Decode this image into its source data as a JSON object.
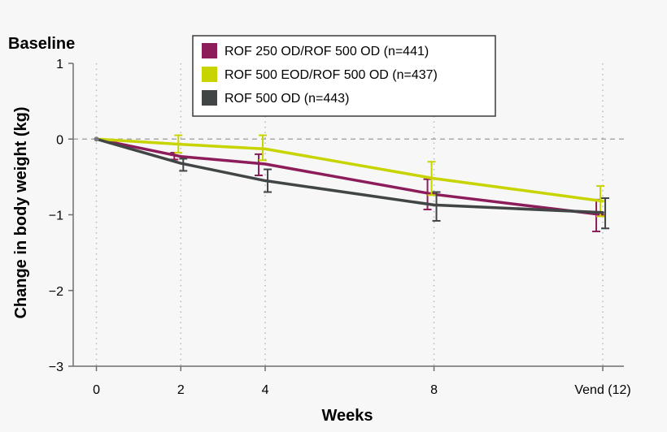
{
  "chart_data": {
    "type": "line",
    "title": "Baseline",
    "xlabel": "Weeks",
    "ylabel": "Change in body weight (kg)",
    "x_ticks": [
      {
        "value": 0,
        "label": "0"
      },
      {
        "value": 2,
        "label": "2"
      },
      {
        "value": 4,
        "label": "4"
      },
      {
        "value": 8,
        "label": "8"
      },
      {
        "value": 12,
        "label": "Vend (12)"
      }
    ],
    "y_ticks": [
      {
        "value": 1,
        "label": "1"
      },
      {
        "value": 0,
        "label": "0"
      },
      {
        "value": -1,
        "label": "−1"
      },
      {
        "value": -2,
        "label": "−2"
      },
      {
        "value": -3,
        "label": "−3"
      }
    ],
    "xlim": [
      -0.55,
      12.5
    ],
    "ylim": [
      -3,
      1
    ],
    "reference_line_y": 0,
    "legend_position": "top-center",
    "series": [
      {
        "name": "ROF 250 OD/ROF 500 OD (n=441)",
        "color": "#8c1d5a",
        "x": [
          0,
          2,
          4,
          8,
          12
        ],
        "y": [
          0,
          -0.23,
          -0.33,
          -0.73,
          -1.0
        ],
        "err_low": [
          0,
          -0.27,
          -0.48,
          -0.93,
          -1.22
        ],
        "err_high": [
          0,
          -0.18,
          -0.2,
          -0.53,
          -0.8
        ]
      },
      {
        "name": "ROF 500 EOD/ROF 500 OD (n=437)",
        "color": "#c8d400",
        "x": [
          0,
          2,
          4,
          8,
          12
        ],
        "y": [
          0,
          -0.07,
          -0.13,
          -0.52,
          -0.82
        ],
        "err_low": [
          0,
          -0.18,
          -0.28,
          -0.74,
          -1.02
        ],
        "err_high": [
          0,
          0.05,
          0.05,
          -0.3,
          -0.62
        ]
      },
      {
        "name": "ROF 500 OD (n=443)",
        "color": "#414546",
        "x": [
          0,
          2,
          4,
          8,
          12
        ],
        "y": [
          0,
          -0.32,
          -0.55,
          -0.87,
          -0.97
        ],
        "err_low": [
          0,
          -0.42,
          -0.7,
          -1.08,
          -1.18
        ],
        "err_high": [
          0,
          -0.26,
          -0.4,
          -0.7,
          -0.78
        ]
      }
    ]
  }
}
